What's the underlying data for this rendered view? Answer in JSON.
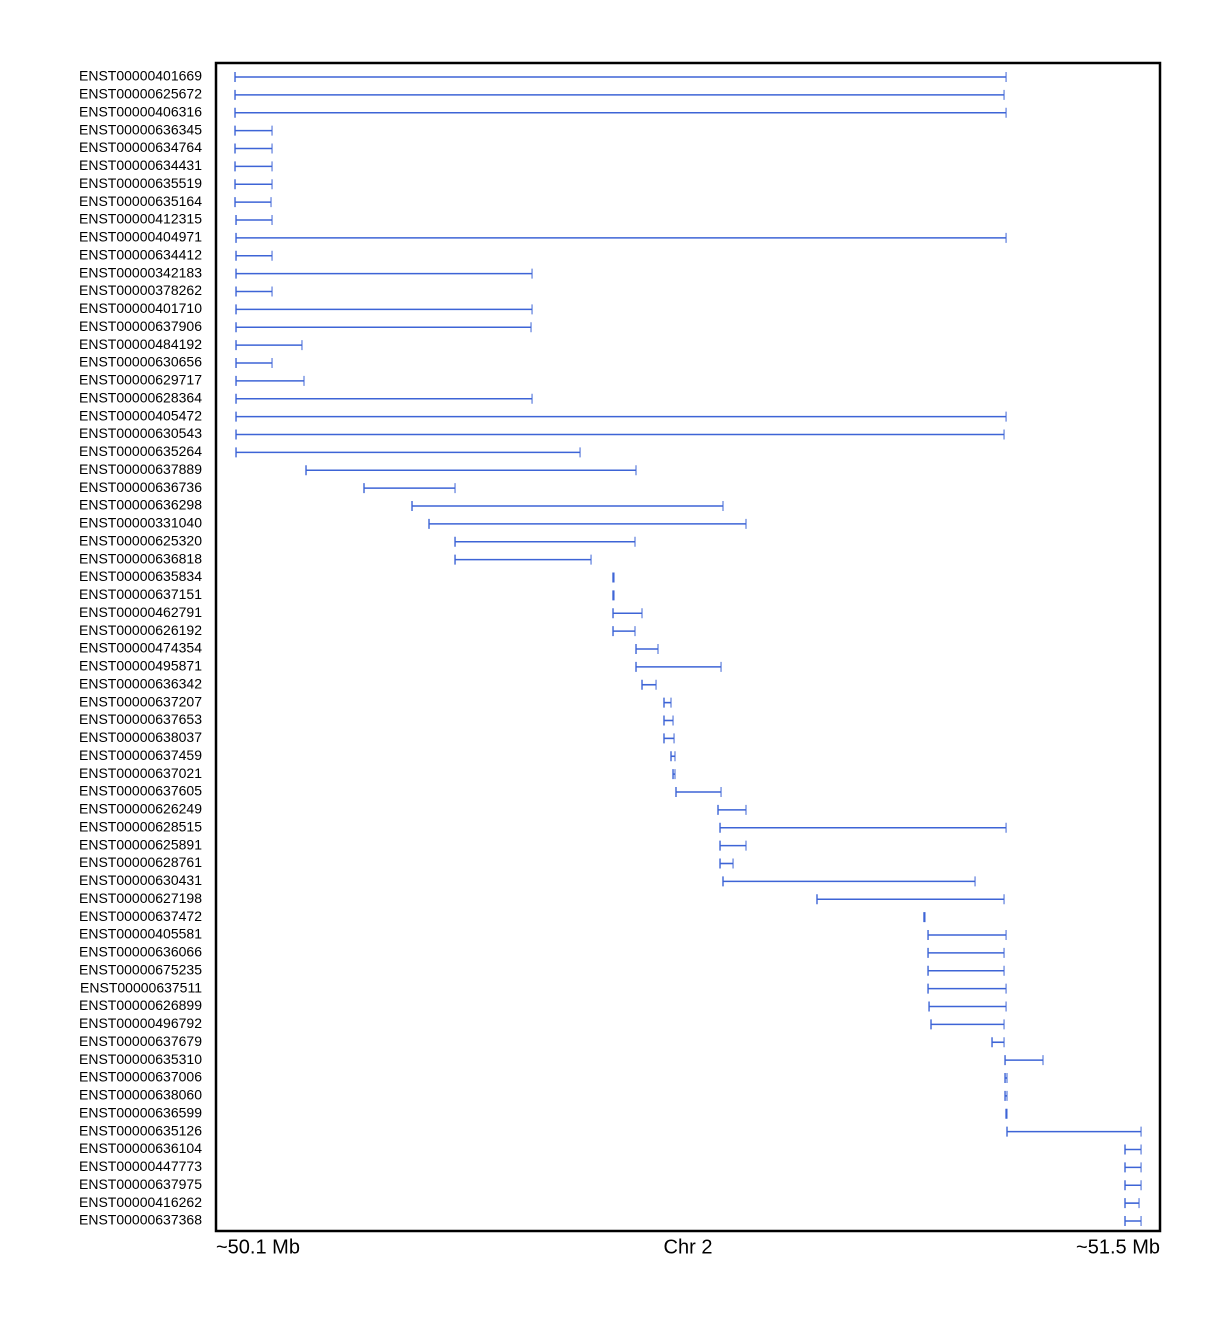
{
  "chart_data": {
    "type": "gene-track",
    "xlabel": "Chr 2",
    "xlim": [
      50.1,
      51.5
    ],
    "xticks": [
      {
        "value": 50.1,
        "label": "~50.1 Mb"
      },
      {
        "value": 51.5,
        "label": "~51.5 Mb"
      }
    ],
    "color": "#3d64d6",
    "categories": [
      "ENST00000401669",
      "ENST00000625672",
      "ENST00000406316",
      "ENST00000636345",
      "ENST00000634764",
      "ENST00000634431",
      "ENST00000635519",
      "ENST00000635164",
      "ENST00000412315",
      "ENST00000404971",
      "ENST00000634412",
      "ENST00000342183",
      "ENST00000378262",
      "ENST00000401710",
      "ENST00000637906",
      "ENST00000484192",
      "ENST00000630656",
      "ENST00000629717",
      "ENST00000628364",
      "ENST00000405472",
      "ENST00000630543",
      "ENST00000635264",
      "ENST00000637889",
      "ENST00000636736",
      "ENST00000636298",
      "ENST00000331040",
      "ENST00000625320",
      "ENST00000636818",
      "ENST00000635834",
      "ENST00000637151",
      "ENST00000462791",
      "ENST00000626192",
      "ENST00000474354",
      "ENST00000495871",
      "ENST00000636342",
      "ENST00000637207",
      "ENST00000637653",
      "ENST00000638037",
      "ENST00000637459",
      "ENST00000637021",
      "ENST00000637605",
      "ENST00000626249",
      "ENST00000628515",
      "ENST00000625891",
      "ENST00000628761",
      "ENST00000630431",
      "ENST00000627198",
      "ENST00000637472",
      "ENST00000405581",
      "ENST00000636066",
      "ENST00000675235",
      "ENST00000637511",
      "ENST00000626899",
      "ENST00000496792",
      "ENST00000637679",
      "ENST00000635310",
      "ENST00000637006",
      "ENST00000638060",
      "ENST00000636599",
      "ENST00000635126",
      "ENST00000636104",
      "ENST00000447773",
      "ENST00000637975",
      "ENST00000416262",
      "ENST00000637368"
    ],
    "starts": [
      50.1282,
      50.1282,
      50.1282,
      50.1282,
      50.1282,
      50.1282,
      50.1282,
      50.1282,
      50.1297,
      50.1297,
      50.1297,
      50.1297,
      50.1297,
      50.1297,
      50.1297,
      50.1297,
      50.1297,
      50.1297,
      50.1297,
      50.1297,
      50.1297,
      50.1297,
      50.2335,
      50.3195,
      50.3907,
      50.4159,
      50.4545,
      50.4545,
      50.6888,
      50.6888,
      50.6888,
      50.6888,
      50.7229,
      50.7229,
      50.7318,
      50.7644,
      50.7644,
      50.7644,
      50.7748,
      50.7778,
      50.7822,
      50.8445,
      50.8475,
      50.8475,
      50.8475,
      50.8519,
      50.9913,
      51.15,
      51.156,
      51.156,
      51.156,
      51.156,
      51.1575,
      51.1604,
      51.2509,
      51.2702,
      51.2702,
      51.2702,
      51.2717,
      51.2731,
      51.4481,
      51.4481,
      51.4481,
      51.4481,
      51.4481
    ],
    "ends": [
      51.2717,
      51.2687,
      51.2717,
      50.1831,
      50.1831,
      50.1831,
      50.1831,
      50.1816,
      50.1831,
      51.2717,
      50.1831,
      50.5687,
      50.1831,
      50.5687,
      50.5672,
      50.2275,
      50.1831,
      50.2305,
      50.5687,
      51.2717,
      51.2687,
      50.6399,
      50.7229,
      50.4545,
      50.8519,
      50.886,
      50.7214,
      50.6562,
      50.6903,
      50.6903,
      50.7318,
      50.7214,
      50.7555,
      50.849,
      50.7526,
      50.7748,
      50.7778,
      50.7793,
      50.7807,
      50.7807,
      50.849,
      50.886,
      51.2717,
      50.886,
      50.8668,
      51.2257,
      51.2687,
      51.1515,
      51.2717,
      51.2687,
      51.2687,
      51.2717,
      51.2717,
      51.2687,
      51.2687,
      51.3265,
      51.2731,
      51.2731,
      51.2731,
      51.4719,
      51.4719,
      51.4719,
      51.4719,
      51.4689,
      51.4719
    ]
  }
}
